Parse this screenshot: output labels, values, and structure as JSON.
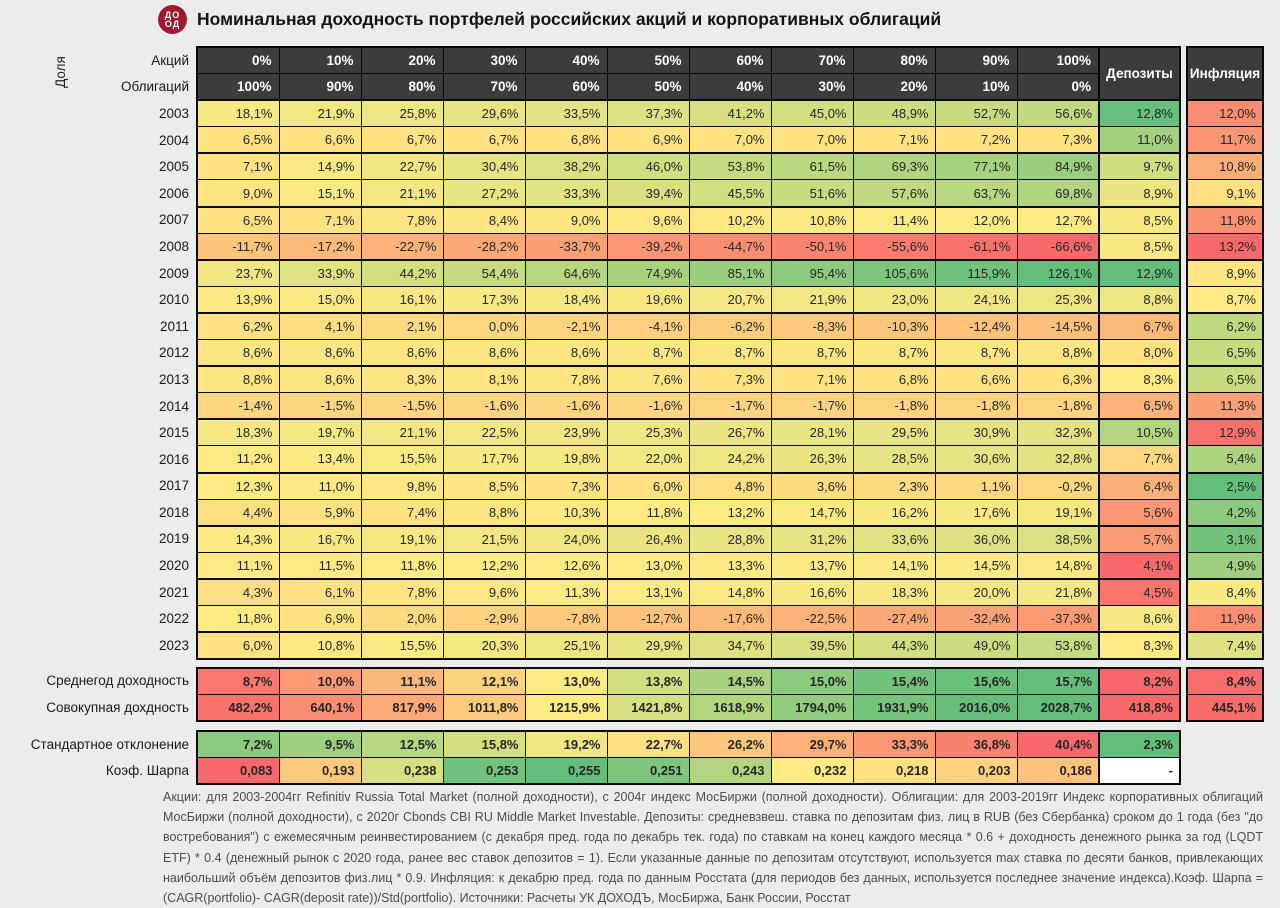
{
  "title": "Номинальная доходность портфелей российских акций и корпоративных облигаций",
  "logo": {
    "line1": "ДО",
    "line2": "ОД",
    "color": "#A01931"
  },
  "header": {
    "share_label": "Доля",
    "stocks_label": "Акций",
    "bonds_label": "Облигаций",
    "deposits_label": "Депозиты",
    "inflation_label": "Инфляция"
  },
  "chart_data": {
    "type": "heatmap",
    "title": "Номинальная доходность портфелей российских акций и корпоративных облигаций",
    "colorscale": {
      "red": "#F8696B",
      "yellow": "#FFEB84",
      "green": "#63BE7B"
    },
    "columns_stocks": [
      "0%",
      "10%",
      "20%",
      "30%",
      "40%",
      "50%",
      "60%",
      "70%",
      "80%",
      "90%",
      "100%"
    ],
    "columns_bonds": [
      "100%",
      "90%",
      "80%",
      "70%",
      "60%",
      "50%",
      "40%",
      "30%",
      "20%",
      "10%",
      "0%"
    ],
    "rows": [
      {
        "year": "2003",
        "portfolio": [
          18.1,
          21.9,
          25.8,
          29.6,
          33.5,
          37.3,
          41.2,
          45.0,
          48.9,
          52.7,
          56.6
        ],
        "deposits": 12.8,
        "inflation": 12.0
      },
      {
        "year": "2004",
        "portfolio": [
          6.5,
          6.6,
          6.7,
          6.7,
          6.8,
          6.9,
          7.0,
          7.0,
          7.1,
          7.2,
          7.3
        ],
        "deposits": 11.0,
        "inflation": 11.7
      },
      {
        "year": "2005",
        "portfolio": [
          7.1,
          14.9,
          22.7,
          30.4,
          38.2,
          46.0,
          53.8,
          61.5,
          69.3,
          77.1,
          84.9
        ],
        "deposits": 9.7,
        "inflation": 10.8
      },
      {
        "year": "2006",
        "portfolio": [
          9.0,
          15.1,
          21.1,
          27.2,
          33.3,
          39.4,
          45.5,
          51.6,
          57.6,
          63.7,
          69.8
        ],
        "deposits": 8.9,
        "inflation": 9.1
      },
      {
        "year": "2007",
        "portfolio": [
          6.5,
          7.1,
          7.8,
          8.4,
          9.0,
          9.6,
          10.2,
          10.8,
          11.4,
          12.0,
          12.7
        ],
        "deposits": 8.5,
        "inflation": 11.8
      },
      {
        "year": "2008",
        "portfolio": [
          -11.7,
          -17.2,
          -22.7,
          -28.2,
          -33.7,
          -39.2,
          -44.7,
          -50.1,
          -55.6,
          -61.1,
          -66.6
        ],
        "deposits": 8.5,
        "inflation": 13.2
      },
      {
        "year": "2009",
        "portfolio": [
          23.7,
          33.9,
          44.2,
          54.4,
          64.6,
          74.9,
          85.1,
          95.4,
          105.6,
          115.9,
          126.1
        ],
        "deposits": 12.9,
        "inflation": 8.9
      },
      {
        "year": "2010",
        "portfolio": [
          13.9,
          15.0,
          16.1,
          17.3,
          18.4,
          19.6,
          20.7,
          21.9,
          23.0,
          24.1,
          25.3
        ],
        "deposits": 8.8,
        "inflation": 8.7
      },
      {
        "year": "2011",
        "portfolio": [
          6.2,
          4.1,
          2.1,
          0.0,
          -2.1,
          -4.1,
          -6.2,
          -8.3,
          -10.3,
          -12.4,
          -14.5
        ],
        "deposits": 6.7,
        "inflation": 6.2
      },
      {
        "year": "2012",
        "portfolio": [
          8.6,
          8.6,
          8.6,
          8.6,
          8.6,
          8.7,
          8.7,
          8.7,
          8.7,
          8.7,
          8.8
        ],
        "deposits": 8.0,
        "inflation": 6.5
      },
      {
        "year": "2013",
        "portfolio": [
          8.8,
          8.6,
          8.3,
          8.1,
          7.8,
          7.6,
          7.3,
          7.1,
          6.8,
          6.6,
          6.3
        ],
        "deposits": 8.3,
        "inflation": 6.5
      },
      {
        "year": "2014",
        "portfolio": [
          -1.4,
          -1.5,
          -1.5,
          -1.6,
          -1.6,
          -1.6,
          -1.7,
          -1.7,
          -1.8,
          -1.8,
          -1.8
        ],
        "deposits": 6.5,
        "inflation": 11.3
      },
      {
        "year": "2015",
        "portfolio": [
          18.3,
          19.7,
          21.1,
          22.5,
          23.9,
          25.3,
          26.7,
          28.1,
          29.5,
          30.9,
          32.3
        ],
        "deposits": 10.5,
        "inflation": 12.9
      },
      {
        "year": "2016",
        "portfolio": [
          11.2,
          13.4,
          15.5,
          17.7,
          19.8,
          22.0,
          24.2,
          26.3,
          28.5,
          30.6,
          32.8
        ],
        "deposits": 7.7,
        "inflation": 5.4
      },
      {
        "year": "2017",
        "portfolio": [
          12.3,
          11.0,
          9.8,
          8.5,
          7.3,
          6.0,
          4.8,
          3.6,
          2.3,
          1.1,
          -0.2
        ],
        "deposits": 6.4,
        "inflation": 2.5
      },
      {
        "year": "2018",
        "portfolio": [
          4.4,
          5.9,
          7.4,
          8.8,
          10.3,
          11.8,
          13.2,
          14.7,
          16.2,
          17.6,
          19.1
        ],
        "deposits": 5.6,
        "inflation": 4.2
      },
      {
        "year": "2019",
        "portfolio": [
          14.3,
          16.7,
          19.1,
          21.5,
          24.0,
          26.4,
          28.8,
          31.2,
          33.6,
          36.0,
          38.5
        ],
        "deposits": 5.7,
        "inflation": 3.1
      },
      {
        "year": "2020",
        "portfolio": [
          11.1,
          11.5,
          11.8,
          12.2,
          12.6,
          13.0,
          13.3,
          13.7,
          14.1,
          14.5,
          14.8
        ],
        "deposits": 4.1,
        "inflation": 4.9
      },
      {
        "year": "2021",
        "portfolio": [
          4.3,
          6.1,
          7.8,
          9.6,
          11.3,
          13.1,
          14.8,
          16.6,
          18.3,
          20.0,
          21.8
        ],
        "deposits": 4.5,
        "inflation": 8.4
      },
      {
        "year": "2022",
        "portfolio": [
          11.8,
          6.9,
          2.0,
          -2.9,
          -7.8,
          -12.7,
          -17.6,
          -22.5,
          -27.4,
          -32.4,
          -37.3
        ],
        "deposits": 8.6,
        "inflation": 11.9
      },
      {
        "year": "2023",
        "portfolio": [
          6.0,
          10.8,
          15.5,
          20.3,
          25.1,
          29.9,
          34.7,
          39.5,
          44.3,
          49.0,
          53.8
        ],
        "deposits": 8.3,
        "inflation": 7.4
      }
    ],
    "summary": [
      {
        "label": "Среднегод доходность",
        "values": [
          8.7,
          10.0,
          11.1,
          12.1,
          13.0,
          13.8,
          14.5,
          15.0,
          15.4,
          15.6,
          15.7
        ],
        "deposits": 8.2,
        "inflation": 8.4,
        "decimals": 1,
        "suffix": "%",
        "invert": false
      },
      {
        "label": "Совокупная дохдность",
        "values": [
          482.2,
          640.1,
          817.9,
          1011.8,
          1215.9,
          1421.8,
          1618.9,
          1794.0,
          1931.9,
          2016.0,
          2028.7
        ],
        "deposits": 418.8,
        "inflation": 445.1,
        "decimals": 1,
        "suffix": "%",
        "invert": false
      },
      {
        "label": "Стандартное отклонение",
        "values": [
          7.2,
          9.5,
          12.5,
          15.8,
          19.2,
          22.7,
          26.2,
          29.7,
          33.3,
          36.8,
          40.4
        ],
        "deposits": 2.3,
        "inflation": null,
        "decimals": 1,
        "suffix": "%",
        "invert": true
      },
      {
        "label": "Коэф. Шарпа",
        "values": [
          0.083,
          0.193,
          0.238,
          0.253,
          0.255,
          0.251,
          0.243,
          0.232,
          0.218,
          0.203,
          0.186
        ],
        "deposits": "-",
        "inflation": null,
        "decimals": 3,
        "suffix": "",
        "invert": false
      }
    ]
  },
  "footnote": "Акции: для 2003-2004гг Refinitiv Russia Total Market (полной доходности), с 2004г индекс МосБиржи (полной доходности). Облигации: для 2003-2019гг Индекс корпоративных облигаций МосБиржи (полной доходности), с 2020г Cbonds CBI RU Middle Market Investable. Депозиты: средневзвеш. ставка по депозитам физ. лиц в RUB (без Сбербанка) сроком до 1 года (без \"до востребования\") с ежемесячным реинвестированием (с декабря пред. года по декабрь тек. года) по ставкам на конец каждого месяца * 0.6 + доходность денежного рынка за год (LQDT ETF) * 0.4 (денежный рынок с 2020 года, ранее вес ставок депозитов = 1). Если указанные данные по депозитам отсутствуют, используется max ставка по десяти банков, привлекающих наибольший объём депозитов физ.лиц * 0.9. Инфляция: к декабрю пред. года по данным Росстата (для периодов без данных, используется последнее значение индекса).Коэф. Шарпа = (CAGR(portfolio)- CAGR(deposit rate))/Std(portfolio). Источники: Расчеты УК ДОХОДЪ, МосБиржа, Банк России, Росстат"
}
